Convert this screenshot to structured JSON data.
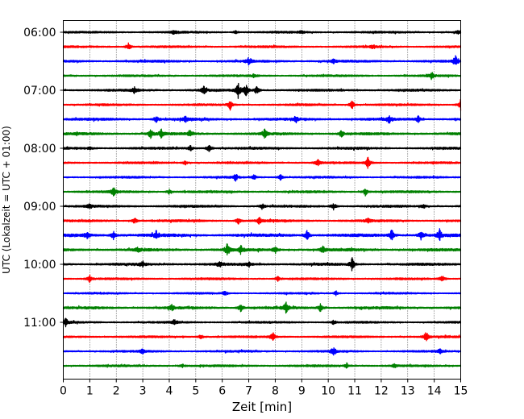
{
  "chart_data": {
    "type": "line",
    "title": "",
    "xlabel": "Zeit  [min]",
    "ylabel": "UTC (Lokalzeit = UTC + 01:00)",
    "xlim": [
      0,
      15
    ],
    "x_ticks": [
      "0",
      "1",
      "2",
      "3",
      "4",
      "5",
      "6",
      "7",
      "8",
      "9",
      "10",
      "11",
      "12",
      "13",
      "14",
      "15"
    ],
    "y_ticks": [
      "06:00",
      "07:00",
      "08:00",
      "09:00",
      "10:00",
      "11:00"
    ],
    "grid_x": true,
    "trace_interval_min": 15,
    "start_time": "06:00",
    "colors": [
      "#000000",
      "#ff0000",
      "#0000ff",
      "#008000"
    ],
    "series": [
      {
        "start": "06:00",
        "color": "#000000",
        "amp": 0.9,
        "events": [
          [
            4.2,
            1.2
          ],
          [
            6.5,
            1.0
          ],
          [
            9.0,
            0.9
          ],
          [
            14.9,
            1.0
          ]
        ]
      },
      {
        "start": "06:15",
        "color": "#ff0000",
        "amp": 0.9,
        "events": [
          [
            2.45,
            2.2
          ],
          [
            11.7,
            1.0
          ]
        ]
      },
      {
        "start": "06:30",
        "color": "#0000ff",
        "amp": 1.0,
        "events": [
          [
            7.0,
            2.0
          ],
          [
            14.8,
            3.0
          ],
          [
            10.2,
            1.0
          ]
        ]
      },
      {
        "start": "06:45",
        "color": "#008000",
        "amp": 0.9,
        "events": [
          [
            13.9,
            2.0
          ],
          [
            7.2,
            1.0
          ]
        ]
      },
      {
        "start": "07:00",
        "color": "#000000",
        "amp": 1.0,
        "events": [
          [
            2.7,
            2.0
          ],
          [
            5.3,
            2.5
          ],
          [
            6.6,
            4.5
          ],
          [
            6.9,
            3.5
          ],
          [
            7.3,
            2.5
          ]
        ]
      },
      {
        "start": "07:15",
        "color": "#ff0000",
        "amp": 0.9,
        "events": [
          [
            6.3,
            2.6
          ],
          [
            10.9,
            2.5
          ],
          [
            15.0,
            3.0
          ]
        ]
      },
      {
        "start": "07:30",
        "color": "#0000ff",
        "amp": 1.1,
        "events": [
          [
            3.5,
            2.0
          ],
          [
            4.6,
            1.6
          ],
          [
            8.8,
            1.5
          ],
          [
            12.3,
            2.3
          ],
          [
            13.4,
            1.8
          ]
        ]
      },
      {
        "start": "07:45",
        "color": "#008000",
        "amp": 1.1,
        "events": [
          [
            3.3,
            3.0
          ],
          [
            3.7,
            2.3
          ],
          [
            4.8,
            2.2
          ],
          [
            7.6,
            2.5
          ],
          [
            10.5,
            2.0
          ]
        ]
      },
      {
        "start": "08:00",
        "color": "#000000",
        "amp": 1.0,
        "events": [
          [
            4.8,
            1.5
          ],
          [
            5.5,
            2.2
          ],
          [
            1.0,
            1.0
          ]
        ]
      },
      {
        "start": "08:15",
        "color": "#ff0000",
        "amp": 0.9,
        "events": [
          [
            9.6,
            2.0
          ],
          [
            11.5,
            3.2
          ],
          [
            4.6,
            1.2
          ]
        ]
      },
      {
        "start": "08:30",
        "color": "#0000ff",
        "amp": 0.9,
        "events": [
          [
            6.5,
            2.0
          ],
          [
            8.2,
            1.5
          ],
          [
            7.2,
            1.3
          ]
        ]
      },
      {
        "start": "08:45",
        "color": "#008000",
        "amp": 1.0,
        "events": [
          [
            1.9,
            2.3
          ],
          [
            11.4,
            2.0
          ],
          [
            4.0,
            1.2
          ]
        ]
      },
      {
        "start": "09:00",
        "color": "#000000",
        "amp": 1.0,
        "events": [
          [
            10.2,
            2.2
          ],
          [
            1.0,
            1.2
          ],
          [
            7.5,
            1.5
          ],
          [
            13.6,
            1.2
          ]
        ]
      },
      {
        "start": "09:15",
        "color": "#ff0000",
        "amp": 1.0,
        "events": [
          [
            6.6,
            2.0
          ],
          [
            7.4,
            2.0
          ],
          [
            2.7,
            1.6
          ],
          [
            11.5,
            1.4
          ]
        ]
      },
      {
        "start": "09:30",
        "color": "#0000ff",
        "amp": 1.3,
        "events": [
          [
            9.2,
            3.0
          ],
          [
            12.4,
            3.2
          ],
          [
            14.2,
            3.5
          ],
          [
            1.9,
            2.4
          ],
          [
            0.9,
            2.0
          ],
          [
            3.5,
            1.8
          ],
          [
            13.5,
            2.5
          ]
        ]
      },
      {
        "start": "09:45",
        "color": "#008000",
        "amp": 1.2,
        "events": [
          [
            6.2,
            4.0
          ],
          [
            6.7,
            2.3
          ],
          [
            8.0,
            2.0
          ],
          [
            9.8,
            2.0
          ],
          [
            2.8,
            1.5
          ]
        ]
      },
      {
        "start": "10:00",
        "color": "#000000",
        "amp": 1.1,
        "events": [
          [
            10.9,
            3.5
          ],
          [
            5.9,
            1.8
          ],
          [
            7.0,
            1.6
          ],
          [
            3.0,
            1.4
          ]
        ]
      },
      {
        "start": "10:15",
        "color": "#ff0000",
        "amp": 0.9,
        "events": [
          [
            1.0,
            2.0
          ],
          [
            14.3,
            2.0
          ],
          [
            8.1,
            1.3
          ]
        ]
      },
      {
        "start": "10:30",
        "color": "#0000ff",
        "amp": 0.8,
        "events": [
          [
            6.1,
            1.3
          ],
          [
            10.3,
            1.2
          ]
        ]
      },
      {
        "start": "10:45",
        "color": "#008000",
        "amp": 1.1,
        "events": [
          [
            6.7,
            2.5
          ],
          [
            8.4,
            3.0
          ],
          [
            9.7,
            2.2
          ],
          [
            4.1,
            1.6
          ]
        ]
      },
      {
        "start": "11:00",
        "color": "#000000",
        "amp": 0.9,
        "events": [
          [
            0.1,
            2.2
          ],
          [
            4.2,
            1.6
          ],
          [
            10.2,
            1.3
          ]
        ]
      },
      {
        "start": "11:15",
        "color": "#ff0000",
        "amp": 0.9,
        "events": [
          [
            7.9,
            2.8
          ],
          [
            13.7,
            3.0
          ],
          [
            5.2,
            1.2
          ]
        ]
      },
      {
        "start": "11:30",
        "color": "#0000ff",
        "amp": 0.9,
        "events": [
          [
            10.2,
            2.5
          ],
          [
            14.2,
            1.6
          ],
          [
            3.0,
            1.2
          ]
        ]
      },
      {
        "start": "11:45",
        "color": "#008000",
        "amp": 0.9,
        "events": [
          [
            10.7,
            1.4
          ],
          [
            4.5,
            1.0
          ],
          [
            12.5,
            1.0
          ]
        ]
      }
    ]
  }
}
